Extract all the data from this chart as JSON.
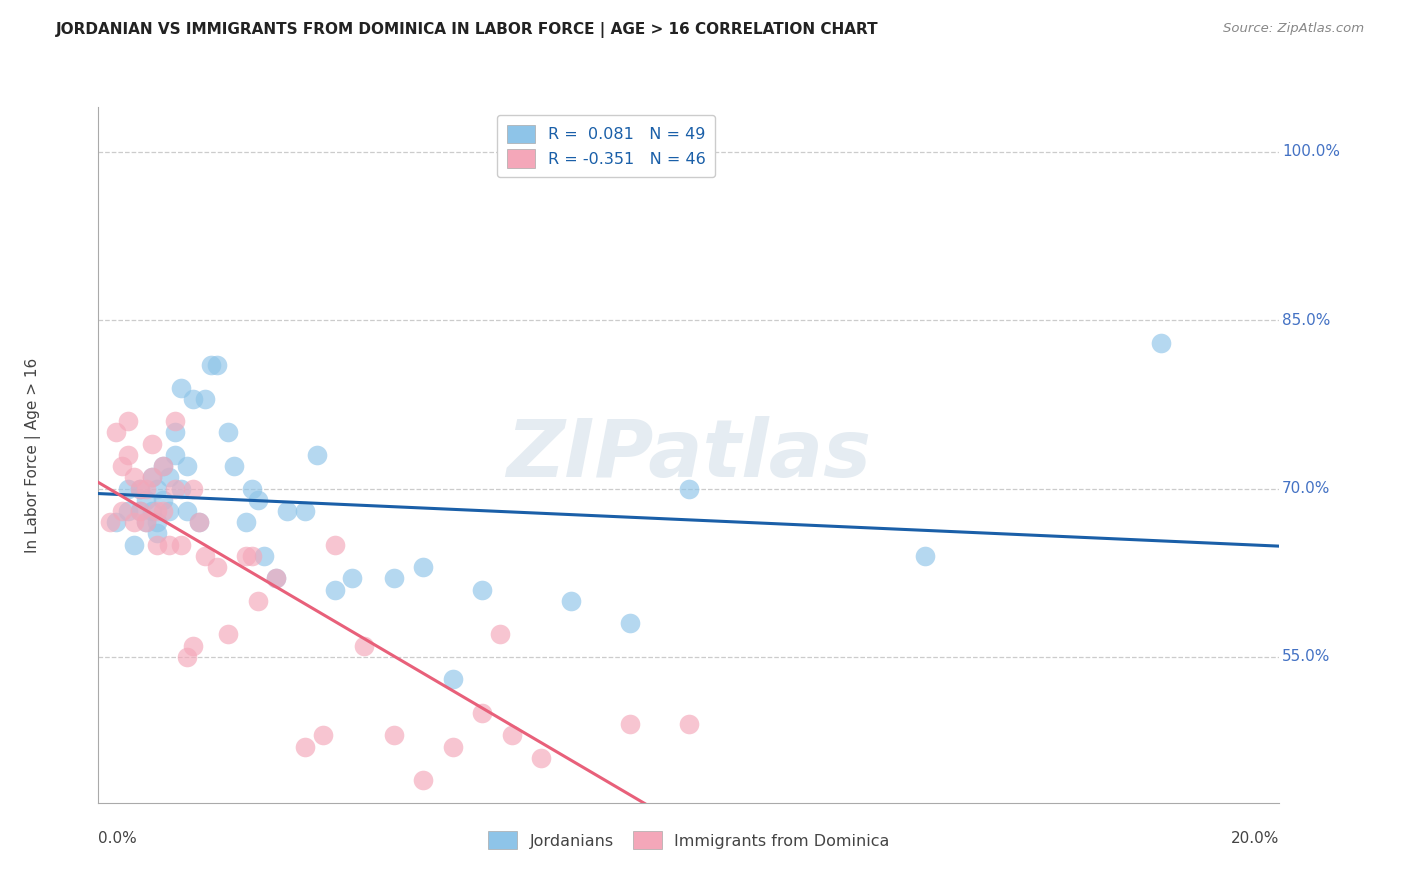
{
  "title": "JORDANIAN VS IMMIGRANTS FROM DOMINICA IN LABOR FORCE | AGE > 16 CORRELATION CHART",
  "source": "Source: ZipAtlas.com",
  "ylabel": "In Labor Force | Age > 16",
  "yticks": [
    "55.0%",
    "70.0%",
    "85.0%",
    "100.0%"
  ],
  "ytick_values": [
    0.55,
    0.7,
    0.85,
    1.0
  ],
  "xlim": [
    0.0,
    0.2
  ],
  "ylim": [
    0.42,
    1.04
  ],
  "legend_label1": "Jordanians",
  "legend_label2": "Immigrants from Dominica",
  "R1": 0.081,
  "N1": 49,
  "R2": -0.351,
  "N2": 46,
  "color_blue": "#8ec4e8",
  "color_pink": "#f4a7b9",
  "color_blue_line": "#1a5fa8",
  "color_pink_line": "#e8607a",
  "watermark": "ZIPatlas",
  "blue_x": [
    0.003,
    0.005,
    0.005,
    0.006,
    0.007,
    0.007,
    0.008,
    0.008,
    0.009,
    0.009,
    0.01,
    0.01,
    0.01,
    0.011,
    0.011,
    0.012,
    0.012,
    0.013,
    0.013,
    0.014,
    0.014,
    0.015,
    0.015,
    0.016,
    0.017,
    0.018,
    0.019,
    0.02,
    0.022,
    0.023,
    0.025,
    0.026,
    0.027,
    0.028,
    0.03,
    0.032,
    0.035,
    0.037,
    0.04,
    0.043,
    0.05,
    0.055,
    0.06,
    0.065,
    0.08,
    0.09,
    0.1,
    0.14,
    0.18
  ],
  "blue_y": [
    0.67,
    0.68,
    0.7,
    0.65,
    0.68,
    0.7,
    0.67,
    0.69,
    0.68,
    0.71,
    0.66,
    0.67,
    0.7,
    0.69,
    0.72,
    0.68,
    0.71,
    0.73,
    0.75,
    0.7,
    0.79,
    0.72,
    0.68,
    0.78,
    0.67,
    0.78,
    0.81,
    0.81,
    0.75,
    0.72,
    0.67,
    0.7,
    0.69,
    0.64,
    0.62,
    0.68,
    0.68,
    0.73,
    0.61,
    0.62,
    0.62,
    0.63,
    0.53,
    0.61,
    0.6,
    0.58,
    0.7,
    0.64,
    0.83
  ],
  "pink_x": [
    0.002,
    0.003,
    0.004,
    0.004,
    0.005,
    0.005,
    0.006,
    0.006,
    0.007,
    0.007,
    0.008,
    0.008,
    0.009,
    0.009,
    0.01,
    0.01,
    0.011,
    0.011,
    0.012,
    0.013,
    0.013,
    0.014,
    0.015,
    0.016,
    0.016,
    0.017,
    0.018,
    0.02,
    0.022,
    0.025,
    0.026,
    0.027,
    0.03,
    0.035,
    0.038,
    0.04,
    0.045,
    0.05,
    0.055,
    0.06,
    0.065,
    0.068,
    0.07,
    0.075,
    0.09,
    0.1
  ],
  "pink_y": [
    0.67,
    0.75,
    0.72,
    0.68,
    0.73,
    0.76,
    0.67,
    0.71,
    0.7,
    0.68,
    0.67,
    0.7,
    0.71,
    0.74,
    0.68,
    0.65,
    0.72,
    0.68,
    0.65,
    0.7,
    0.76,
    0.65,
    0.55,
    0.56,
    0.7,
    0.67,
    0.64,
    0.63,
    0.57,
    0.64,
    0.64,
    0.6,
    0.62,
    0.47,
    0.48,
    0.65,
    0.56,
    0.48,
    0.44,
    0.47,
    0.5,
    0.57,
    0.48,
    0.46,
    0.49,
    0.49
  ]
}
